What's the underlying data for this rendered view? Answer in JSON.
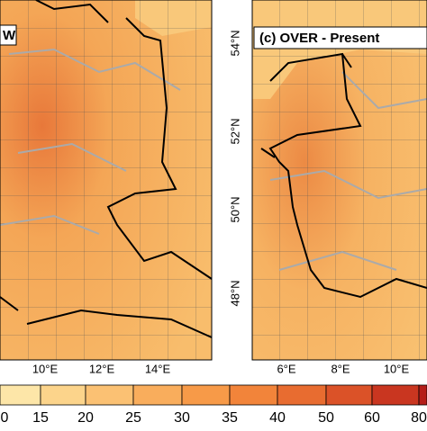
{
  "panels": [
    {
      "title": "W",
      "lon_labels": [
        "10°E",
        "12°E",
        "14°E"
      ]
    },
    {
      "title": "(c) OVER - Present",
      "lat_labels": [
        "54°N",
        "52°N",
        "50°N",
        "48°N"
      ],
      "lon_labels": [
        "6°E",
        "8°E",
        "10°E"
      ]
    }
  ],
  "colorbar": {
    "labels": [
      "0",
      "15",
      "20",
      "25",
      "30",
      "35",
      "40",
      "50",
      "60",
      "80"
    ],
    "colors": [
      "#fde6a8",
      "#fcd48b",
      "#fbc173",
      "#f9ad5c",
      "#f79a48",
      "#f2843a",
      "#e86c30",
      "#db5228",
      "#c93620",
      "#b51c18"
    ]
  }
}
